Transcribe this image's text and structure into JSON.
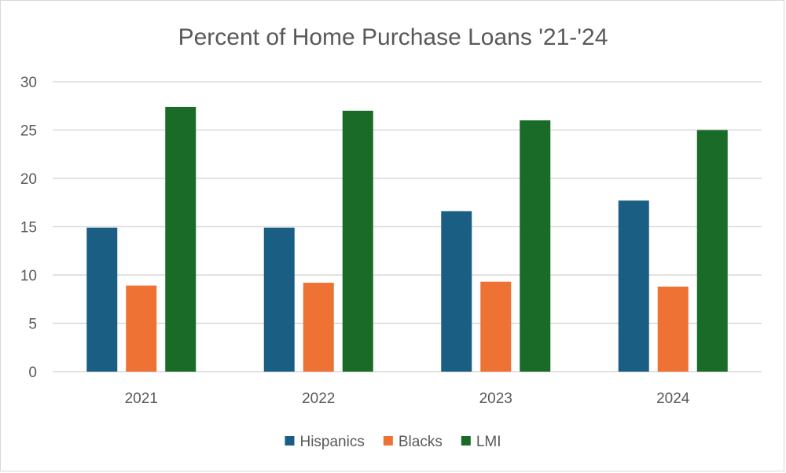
{
  "chart_data": {
    "type": "bar",
    "title": "Percent of Home Purchase Loans '21-'24",
    "xlabel": "",
    "ylabel": "",
    "categories": [
      "2021",
      "2022",
      "2023",
      "2024"
    ],
    "series": [
      {
        "name": "Hispanics",
        "color": "#1b5e84",
        "values": [
          14.9,
          14.9,
          16.6,
          17.7
        ]
      },
      {
        "name": "Blacks",
        "color": "#ed7234",
        "values": [
          8.9,
          9.2,
          9.3,
          8.8
        ]
      },
      {
        "name": "LMI",
        "color": "#1a6b27",
        "values": [
          27.4,
          27.0,
          26.0,
          25.0
        ]
      }
    ],
    "ylim": [
      0,
      30
    ],
    "yticks": [
      "0",
      "5",
      "10",
      "15",
      "20",
      "25",
      "30"
    ],
    "grid": true,
    "legend_position": "bottom"
  }
}
